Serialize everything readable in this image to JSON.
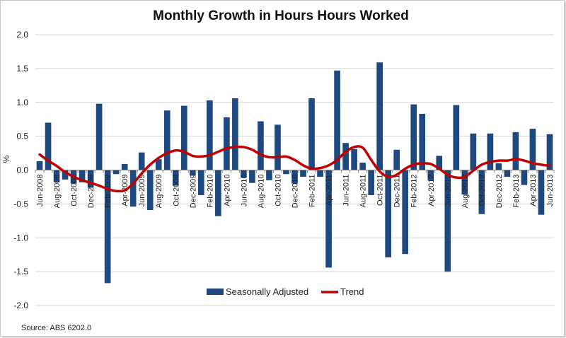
{
  "chart_data": {
    "type": "bar",
    "title": "Monthly Growth in Hours Hours Worked",
    "ylabel": "%",
    "xlabel": "",
    "ylim": [
      -2.0,
      2.0
    ],
    "yticks": [
      "2.0",
      "1.5",
      "1.0",
      "0.5",
      "0.0",
      "-0.5",
      "-1.0",
      "-1.5",
      "-2.0"
    ],
    "ytick_values": [
      2.0,
      1.5,
      1.0,
      0.5,
      0.0,
      -0.5,
      -1.0,
      -1.5,
      -2.0
    ],
    "grid": true,
    "legend_position": "bottom",
    "categories": [
      "Jun-2008",
      "Jul-2008",
      "Aug-2008",
      "Sep-2008",
      "Oct-2008",
      "Nov-2008",
      "Dec-2008",
      "Jan-2009",
      "Feb-2009",
      "Mar-2009",
      "Apr-2009",
      "May-2009",
      "Jun-2009",
      "Jul-2009",
      "Aug-2009",
      "Sep-2009",
      "Oct-2009",
      "Nov-2009",
      "Dec-2009",
      "Jan-2010",
      "Feb-2010",
      "Mar-2010",
      "Apr-2010",
      "May-2010",
      "Jun-2010",
      "Jul-2010",
      "Aug-2010",
      "Sep-2010",
      "Oct-2010",
      "Nov-2010",
      "Dec-2010",
      "Jan-2011",
      "Feb-2011",
      "Mar-2011",
      "Apr-2011",
      "May-2011",
      "Jun-2011",
      "Jul-2011",
      "Aug-2011",
      "Sep-2011",
      "Oct-2011",
      "Nov-2011",
      "Dec-2011",
      "Jan-2012",
      "Feb-2012",
      "Mar-2012",
      "Apr-2012",
      "May-2012",
      "Jun-2012",
      "Jul-2012",
      "Aug-2012",
      "Sep-2012",
      "Oct-2012",
      "Nov-2012",
      "Dec-2012",
      "Jan-2013",
      "Feb-2013",
      "Mar-2013",
      "Apr-2013",
      "May-2013",
      "Jun-2013"
    ],
    "tick_labels": [
      "Jun-2008",
      "Aug-2008",
      "Oct-2008",
      "Dec-2008",
      "Feb-2009",
      "Apr-2009",
      "Jun-2009",
      "Aug-2009",
      "Oct-2009",
      "Dec-2009",
      "Feb-2010",
      "Apr-2010",
      "Jun-2010",
      "Aug-2010",
      "Oct-2010",
      "Dec-2010",
      "Feb-2011",
      "Apr-2011",
      "Jun-2011",
      "Aug-2011",
      "Oct-2011",
      "Dec-2011",
      "Feb-2012",
      "Apr-2012",
      "Jun-2012",
      "Aug-2012",
      "Oct-2012",
      "Dec-2012",
      "Feb-2013",
      "Apr-2013",
      "Jun-2013"
    ],
    "series": [
      {
        "name": "Seasonally Adjusted",
        "type": "bar",
        "color": "#1f497d",
        "values": [
          0.13,
          0.7,
          -0.18,
          -0.14,
          -0.2,
          -0.18,
          -0.26,
          0.98,
          -1.67,
          -0.06,
          0.09,
          -0.54,
          0.26,
          -0.59,
          0.16,
          0.88,
          -0.23,
          0.95,
          -0.08,
          -0.37,
          1.03,
          -0.68,
          0.78,
          1.06,
          -0.11,
          -0.19,
          0.72,
          -0.15,
          0.67,
          -0.06,
          -0.2,
          -0.1,
          1.06,
          -0.1,
          -1.44,
          1.47,
          0.4,
          0.31,
          0.11,
          -0.37,
          1.59,
          -1.29,
          0.3,
          -1.24,
          0.97,
          0.83,
          -0.15,
          0.21,
          -1.5,
          0.96,
          -0.36,
          0.54,
          -0.65,
          0.54,
          0.1,
          -0.1,
          0.56,
          -0.22,
          0.61,
          -0.66,
          0.53
        ]
      },
      {
        "name": "Trend",
        "type": "line",
        "color": "#c00000",
        "values": [
          0.23,
          0.14,
          0.06,
          -0.03,
          -0.1,
          -0.15,
          -0.19,
          -0.23,
          -0.28,
          -0.31,
          -0.3,
          -0.2,
          -0.05,
          0.08,
          0.18,
          0.25,
          0.29,
          0.27,
          0.21,
          0.2,
          0.22,
          0.27,
          0.32,
          0.34,
          0.34,
          0.3,
          0.23,
          0.19,
          0.19,
          0.2,
          0.15,
          0.07,
          0.02,
          0.03,
          0.07,
          0.15,
          0.27,
          0.34,
          0.33,
          0.15,
          -0.02,
          -0.1,
          -0.07,
          0.02,
          0.08,
          0.1,
          0.09,
          0.02,
          -0.07,
          -0.11,
          -0.1,
          -0.01,
          0.08,
          0.12,
          0.14,
          0.14,
          0.16,
          0.14,
          0.1,
          0.08,
          0.06
        ]
      }
    ]
  },
  "legend": {
    "items": [
      {
        "label": "Seasonally Adjusted",
        "color": "#1f497d"
      },
      {
        "label": "Trend",
        "color": "#c00000"
      }
    ]
  },
  "source_note": "Source: ABS 6202.0"
}
